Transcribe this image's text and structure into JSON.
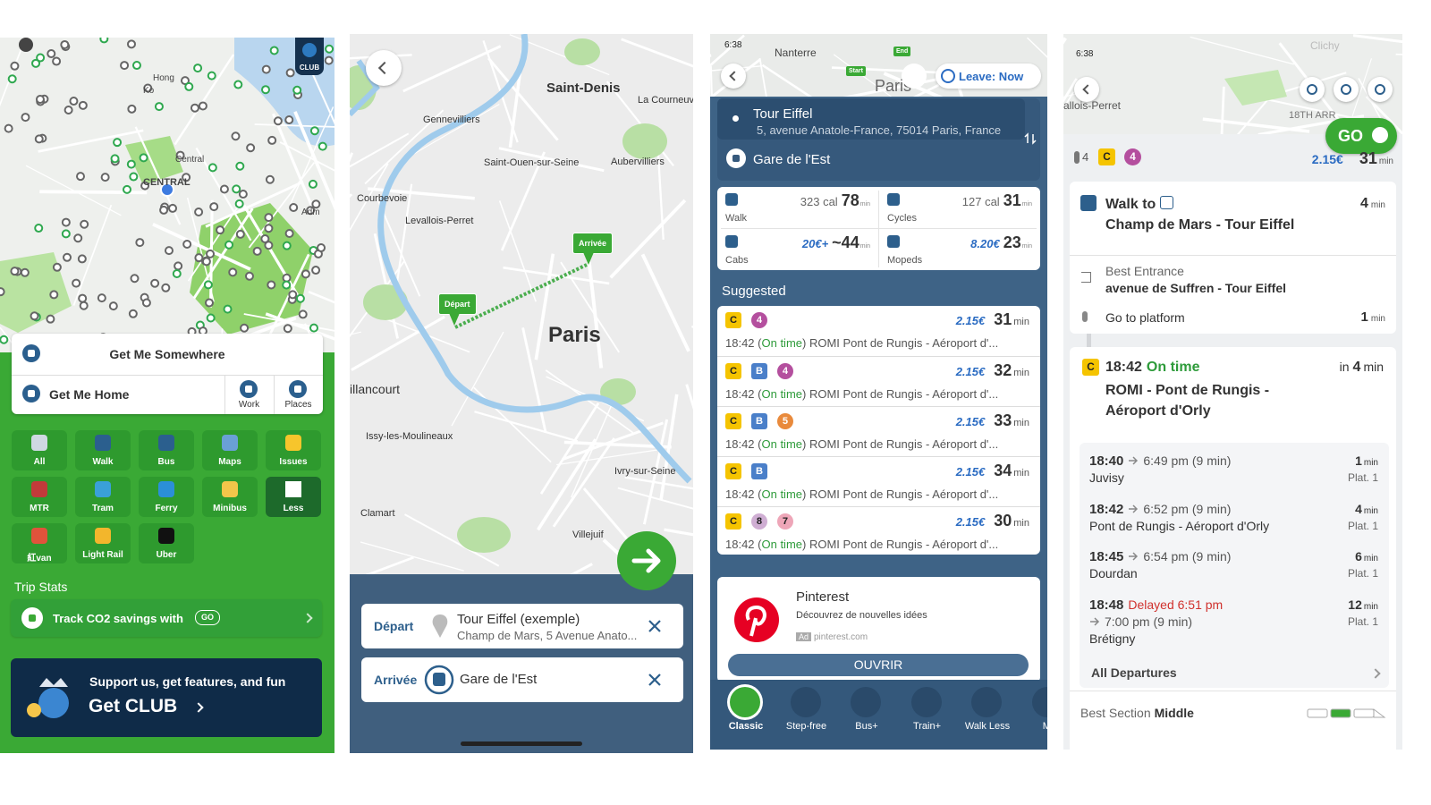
{
  "screen1": {
    "map_labels": [
      "Hong",
      "Ko",
      "Central",
      "CENTRAL",
      "Adm"
    ],
    "club_badge": "CLUB",
    "search_title": "Get Me Somewhere",
    "home": "Get Me Home",
    "shortcuts": [
      "Work",
      "Places"
    ],
    "modes": [
      "All",
      "Walk",
      "Bus",
      "Maps",
      "Issues",
      "MTR",
      "Tram",
      "Ferry",
      "Minibus",
      "Less",
      "紅van",
      "Light Rail",
      "Uber"
    ],
    "trip_stats": "Trip Stats",
    "track": "Track CO2 savings with",
    "track_badge": "GO",
    "club_tagline": "Support us, get features, and fun",
    "club_cta": "Get CLUB"
  },
  "screen2": {
    "map_labels": [
      "Saint-Denis",
      "La Courneuve",
      "Gennevilliers",
      "Saint-Ouen-sur-Seine",
      "Aubervilliers",
      "Courbevoie",
      "Levallois-Perret",
      "Paris",
      "illancourt",
      "Issy-les-Moulineaux",
      "Ivry-sur-Seine",
      "Clamart",
      "Villejuif"
    ],
    "pins": [
      "Arrivée",
      "Départ"
    ],
    "fields": [
      {
        "label": "Départ",
        "name": "Tour Eiffel (exemple)",
        "detail": "Champ de Mars, 5 Avenue Anato..."
      },
      {
        "label": "Arrivée",
        "name": "Gare de l'Est"
      }
    ]
  },
  "screen3": {
    "status_time": "6:38",
    "map_labels": [
      "Nanterre",
      "Paris"
    ],
    "pins": [
      "Start",
      "End"
    ],
    "leave": "Leave: Now",
    "from": {
      "name": "Tour Eiffel",
      "address": "5, avenue Anatole-France, 75014 Paris, France"
    },
    "to": "Gare de l'Est",
    "modes": [
      {
        "name": "Walk",
        "extra": "323 cal",
        "time": 78,
        "unit": "min"
      },
      {
        "name": "Cycles",
        "extra": "127 cal",
        "time": 31,
        "unit": "min"
      },
      {
        "name": "Cabs",
        "extra": "20€+",
        "time": "~44",
        "unit": "min"
      },
      {
        "name": "Mopeds",
        "extra": "8.20€",
        "time": 23,
        "unit": "min"
      }
    ],
    "suggested": "Suggested",
    "routes": [
      {
        "lines": [
          {
            "label": "C",
            "color": "#f5c400"
          },
          {
            "label": "4",
            "color": "#b44f9e"
          }
        ],
        "price": "2.15€",
        "time": 31,
        "unit": "min",
        "before": "18:42 (",
        "status": "On time",
        "after": ") ROMI Pont de Rungis - Aéroport d'..."
      },
      {
        "lines": [
          {
            "label": "C",
            "color": "#f5c400"
          },
          {
            "label": "B",
            "color": "#4a7fc9"
          },
          {
            "label": "4",
            "color": "#b44f9e"
          }
        ],
        "price": "2.15€",
        "time": 32,
        "unit": "min",
        "before": "18:42 (",
        "status": "On time",
        "after": ") ROMI Pont de Rungis - Aéroport d'..."
      },
      {
        "lines": [
          {
            "label": "C",
            "color": "#f5c400"
          },
          {
            "label": "B",
            "color": "#4a7fc9"
          },
          {
            "label": "5",
            "color": "#e98a3c"
          }
        ],
        "price": "2.15€",
        "time": 33,
        "unit": "min",
        "before": "18:42 (",
        "status": "On time",
        "after": ") ROMI Pont de Rungis - Aéroport d'..."
      },
      {
        "lines": [
          {
            "label": "C",
            "color": "#f5c400"
          },
          {
            "label": "B",
            "color": "#4a7fc9"
          }
        ],
        "price": "2.15€",
        "time": 34,
        "unit": "min",
        "before": "18:42 (",
        "status": "On time",
        "after": ") ROMI Pont de Rungis - Aéroport d'..."
      },
      {
        "lines": [
          {
            "label": "C",
            "color": "#f5c400"
          },
          {
            "label": "8",
            "color": "#cfaed3"
          },
          {
            "label": "7",
            "color": "#eea6b8"
          }
        ],
        "price": "2.15€",
        "time": 30,
        "unit": "min",
        "before": "18:42 (",
        "status": "On time",
        "after": ") ROMI Pont de Rungis - Aéroport d'..."
      }
    ],
    "ad": {
      "brand": "Pinterest",
      "text": "Découvrez de nouvelles idées",
      "badge": "Ad",
      "url": "pinterest.com",
      "button": "OUVRIR"
    },
    "tabs": [
      "Classic",
      "Step-free",
      "Bus+",
      "Train+",
      "Walk Less",
      "Mi"
    ]
  },
  "screen4": {
    "status_time": "6:38",
    "map_labels": [
      "Clichy",
      "allois-Perret",
      "18TH ARR"
    ],
    "go": "GO",
    "summary": {
      "walk": 4,
      "lines": [
        {
          "label": "C",
          "color": "#f5c400"
        },
        {
          "label": "4",
          "color": "#b44f9e"
        }
      ],
      "price": "2.15€",
      "time": 31,
      "unit": "min"
    },
    "walk_step": {
      "prefix": "Walk to",
      "stop": "Champ de Mars - Tour Eiffel",
      "time": 4,
      "unit": "min"
    },
    "entrance": {
      "label": "Best Entrance",
      "value": "avenue de Suffren - Tour Eiffel"
    },
    "platform": {
      "label": "Go to platform",
      "time": 1,
      "unit": "min"
    },
    "next": {
      "line": {
        "label": "C",
        "color": "#f5c400"
      },
      "time": "18:42",
      "status": "On time",
      "prefix": "in",
      "wait": 4,
      "unit": "min",
      "destination": "ROMI - Pont de Rungis - Aéroport d'Orly"
    },
    "departures": [
      {
        "time": "18:40",
        "arrival": "6:49 pm (9 min)",
        "destination": "Juvisy",
        "wait": 1,
        "unit": "min",
        "platform": "Plat. 1"
      },
      {
        "time": "18:42",
        "arrival": "6:52 pm (9 min)",
        "destination": "Pont de Rungis - Aéroport d'Orly",
        "wait": 4,
        "unit": "min",
        "platform": "Plat. 1"
      },
      {
        "time": "18:45",
        "arrival": "6:54 pm (9 min)",
        "destination": "Dourdan",
        "wait": 6,
        "unit": "min",
        "platform": "Plat. 1"
      },
      {
        "time": "18:48",
        "delay": "Delayed 6:51 pm",
        "arrival": "7:00 pm (9 min)",
        "destination": "Brétigny",
        "wait": 12,
        "unit": "min",
        "platform": "Plat. 1"
      }
    ],
    "all_departures": "All Departures",
    "section": {
      "label": "Best Section",
      "value": "Middle"
    }
  }
}
